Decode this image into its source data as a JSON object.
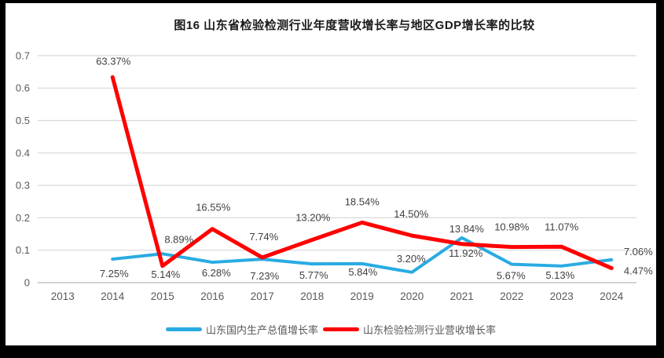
{
  "chart_data": {
    "type": "line",
    "title": "图16   山东省检验检测行业年度营收增长率与地区GDP增长率的比较",
    "categories": [
      "2013",
      "2014",
      "2015",
      "2016",
      "2017",
      "2018",
      "2019",
      "2020",
      "2021",
      "2022",
      "2023",
      "2024"
    ],
    "y_axis": {
      "tick_labels": [
        "0",
        "0.1",
        "0.2",
        "0.3",
        "0.4",
        "0.5",
        "0.6",
        "0.7"
      ],
      "min": 0,
      "max": 0.7,
      "grid": true
    },
    "values_unit": "percent",
    "legend_position": "bottom",
    "grid_color": "#d9d9d9",
    "axis_color": "#c3c3c3",
    "background": "#ffffff",
    "frame_color": "#000000",
    "text_colors": {
      "tick": "#595959",
      "data_label": "#404040",
      "title": "#1a1a1a",
      "legend": "#595959"
    },
    "series": [
      {
        "name": "山东国内生产总值增长率",
        "color": "#29abe2",
        "stroke_width": 4,
        "start_category_index": 1,
        "values": [
          7.25,
          8.89,
          6.28,
          7.23,
          5.77,
          5.84,
          3.2,
          13.84,
          5.67,
          5.13,
          7.06
        ],
        "labels": [
          "7.25%",
          "8.89%",
          "6.28%",
          "7.23%",
          "5.77%",
          "5.84%",
          "3.20%",
          "13.84%",
          "5.67%",
          "5.13%",
          "7.06%"
        ],
        "label_offsets": [
          [
            2,
            23
          ],
          [
            21,
            -14
          ],
          [
            5,
            18
          ],
          [
            3,
            26
          ],
          [
            2,
            19
          ],
          [
            1,
            15
          ],
          [
            -1,
            -13
          ],
          [
            6,
            -7
          ],
          [
            -1,
            19
          ],
          [
            -2,
            16
          ],
          [
            34,
            -6
          ]
        ]
      },
      {
        "name": "山东检验检测行业营收增长率",
        "color": "#ff0000",
        "stroke_width": 5,
        "start_category_index": 1,
        "values": [
          63.37,
          5.14,
          16.55,
          7.74,
          13.2,
          18.54,
          14.5,
          11.92,
          10.98,
          11.07,
          4.47
        ],
        "labels": [
          "63.37%",
          "5.14%",
          "16.55%",
          "7.74%",
          "13.20%",
          "18.54%",
          "14.50%",
          "11.92%",
          "10.98%",
          "11.07%",
          "4.47%"
        ],
        "label_offsets": [
          [
            1,
            -16
          ],
          [
            4,
            15
          ],
          [
            1,
            -23
          ],
          [
            2,
            -22
          ],
          [
            1,
            -24
          ],
          [
            0,
            -22
          ],
          [
            -1,
            -23
          ],
          [
            5,
            16
          ],
          [
            0,
            -21
          ],
          [
            0,
            -21
          ],
          [
            34,
            8
          ]
        ]
      }
    ]
  }
}
